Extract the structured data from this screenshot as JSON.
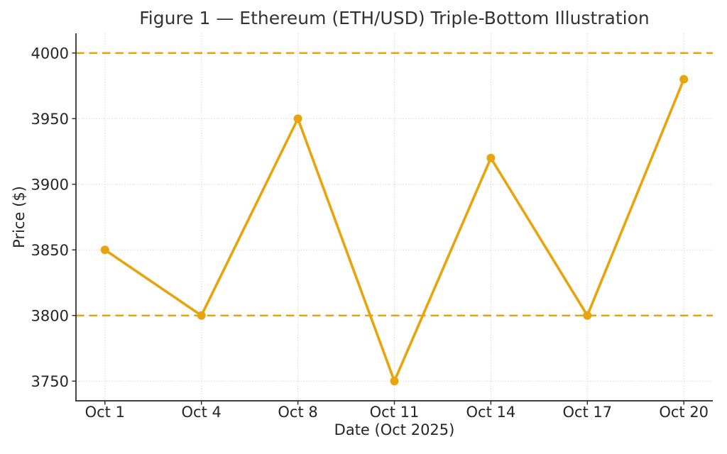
{
  "chart_data": {
    "type": "line",
    "title": "Figure 1 — Ethereum (ETH/USD) Triple-Bottom Illustration",
    "xlabel": "Date (Oct 2025)",
    "ylabel": "Price ($)",
    "categories": [
      "Oct 1",
      "Oct 4",
      "Oct 8",
      "Oct 11",
      "Oct 14",
      "Oct 17",
      "Oct 20"
    ],
    "values": [
      3850,
      3800,
      3950,
      3750,
      3920,
      3800,
      3980
    ],
    "yticks": [
      3750,
      3800,
      3850,
      3900,
      3950,
      4000
    ],
    "ylim": [
      3735,
      4015
    ],
    "reference_lines": [
      {
        "y": 4000,
        "style": "dashed"
      },
      {
        "y": 3800,
        "style": "dashed"
      }
    ],
    "line_color": "#E8A40D",
    "marker": "circle",
    "grid": "dotted",
    "grid_color": "#c9c9c9",
    "axis_color": "#262626",
    "legend": "none"
  }
}
